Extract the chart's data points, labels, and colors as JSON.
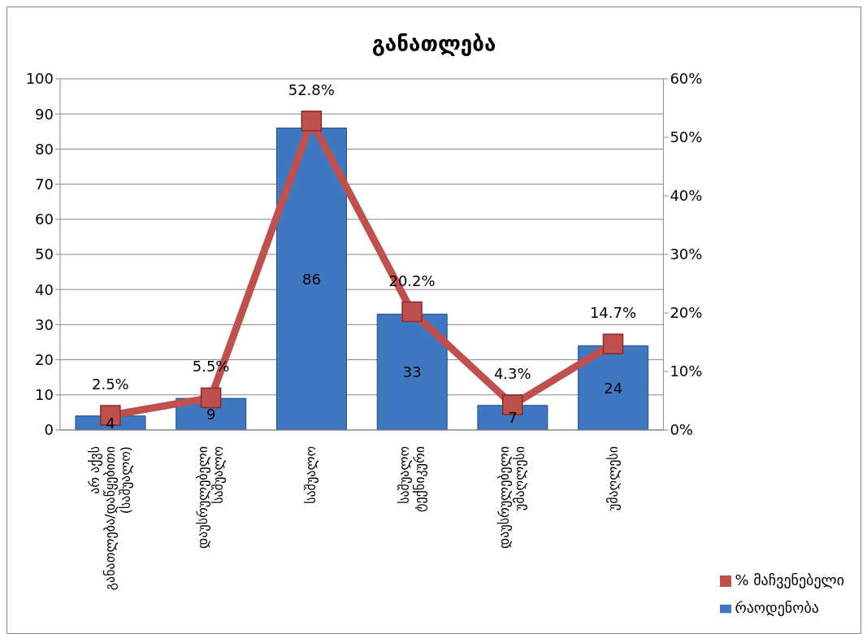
{
  "chart_data": {
    "type": "bar",
    "title": "განათლება",
    "categories": [
      "არ აქვს განათლება/დაწყებითი (საშუალო)",
      "დაუსრულებელი საშუალო",
      "საშუალო",
      "საშუალო ტექნიკური",
      "დაუსრულებელი უმაღლესი",
      "უმაღლესი"
    ],
    "series": [
      {
        "name": "რაოდენობა",
        "color": "#3d78c0",
        "values": [
          4,
          9,
          86,
          33,
          7,
          24
        ],
        "data_labels": true
      },
      {
        "name": "% მაჩვენებელი",
        "type": "line",
        "axis": "y2",
        "color": "#c0504d",
        "marker": "square",
        "values": [
          2.5,
          5.5,
          52.8,
          20.2,
          4.3,
          14.7
        ],
        "value_labels": [
          "2.5%",
          "5.5%",
          "52.8%",
          "20.2%",
          "4.3%",
          "14.7%"
        ]
      }
    ],
    "ylim": [
      0,
      100
    ],
    "yticks": [
      0,
      10,
      20,
      30,
      40,
      50,
      60,
      70,
      80,
      90,
      100
    ],
    "y2lim": [
      0,
      60
    ],
    "y2ticks": [
      {
        "value": 0,
        "label": "0%"
      },
      {
        "value": 10,
        "label": "10%"
      },
      {
        "value": 20,
        "label": "20%"
      },
      {
        "value": 30,
        "label": "30%"
      },
      {
        "value": 40,
        "label": "40%"
      },
      {
        "value": 50,
        "label": "50%"
      },
      {
        "value": 60,
        "label": "60%"
      }
    ],
    "grid": "y",
    "legend": "bottom right"
  }
}
